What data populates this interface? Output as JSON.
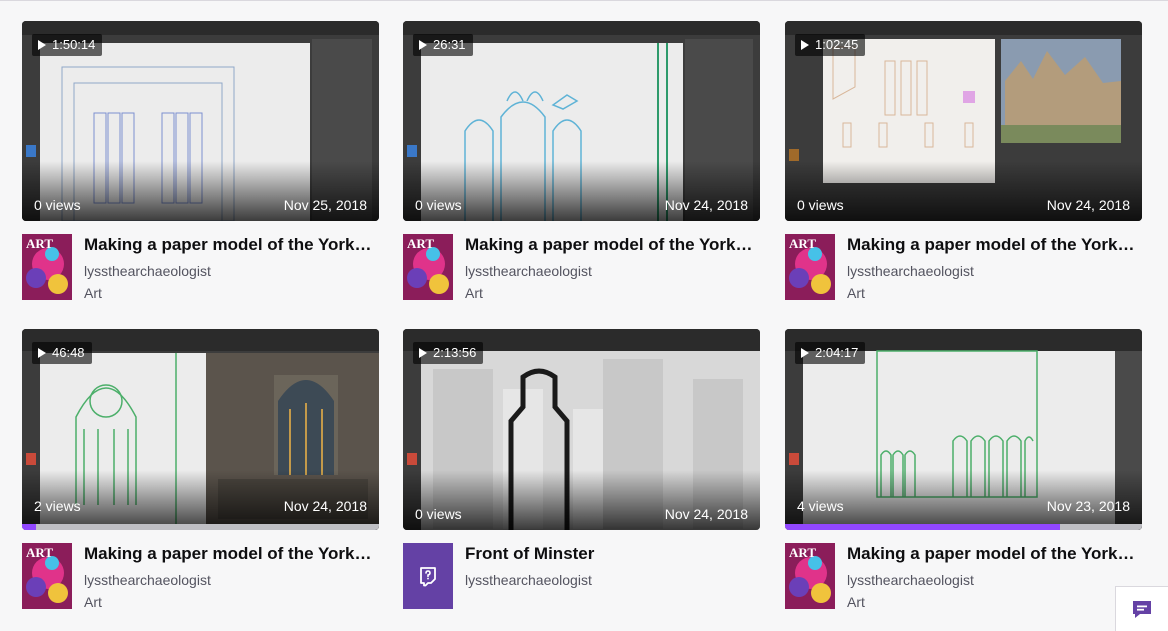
{
  "videos": [
    {
      "duration": "1:50:14",
      "views": "0 views",
      "date": "Nov 25, 2018",
      "title": "Making a paper model of the York Minster",
      "channel": "lyssthearchaeologist",
      "category": "Art",
      "progress": 0
    },
    {
      "duration": "26:31",
      "views": "0 views",
      "date": "Nov 24, 2018",
      "title": "Making a paper model of the York Minster",
      "channel": "lyssthearchaeologist",
      "category": "Art",
      "progress": 0
    },
    {
      "duration": "1:02:45",
      "views": "0 views",
      "date": "Nov 24, 2018",
      "title": "Making a paper model of the York Minster",
      "channel": "lyssthearchaeologist",
      "category": "Art",
      "progress": 0
    },
    {
      "duration": "46:48",
      "views": "2 views",
      "date": "Nov 24, 2018",
      "title": "Making a paper model of the York Minster",
      "channel": "lyssthearchaeologist",
      "category": "Art",
      "progress": 0.04
    },
    {
      "duration": "2:13:56",
      "views": "0 views",
      "date": "Nov 24, 2018",
      "title": "Front of Minster",
      "channel": "lyssthearchaeologist",
      "category": "",
      "progress": 0
    },
    {
      "duration": "2:04:17",
      "views": "4 views",
      "date": "Nov 23, 2018",
      "title": "Making a paper model of the York Minster",
      "channel": "lyssthearchaeologist",
      "category": "Art",
      "progress": 0.77
    }
  ],
  "icons": {
    "play": "play-icon",
    "chat": "chat-icon",
    "default_box_art": "glitch-icon"
  },
  "colors": {
    "accent": "#9147ff",
    "avatar_default": "#6441a5"
  }
}
